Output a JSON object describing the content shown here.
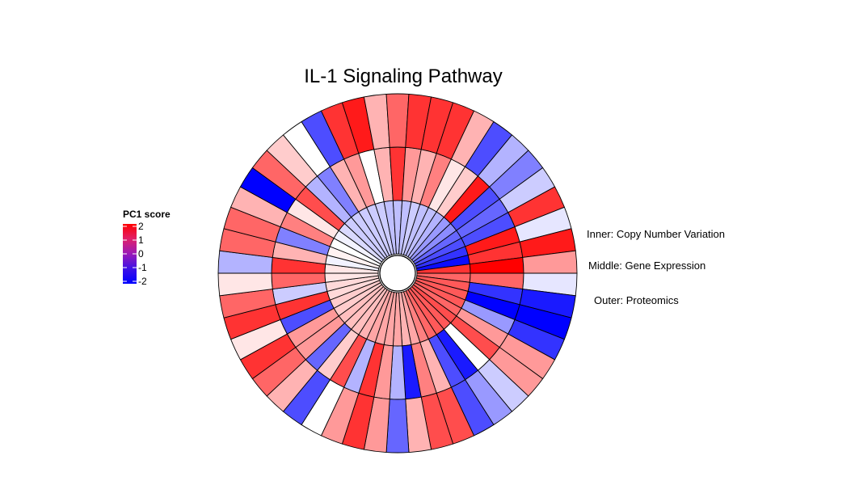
{
  "chart_data": {
    "type": "heatmap",
    "layout": "circular",
    "title": "IL-1 Signaling Pathway",
    "legend": {
      "title": "PC1 score",
      "ticks": [
        "2",
        "1",
        "0",
        "-1",
        "-2"
      ],
      "range": [
        -2,
        2
      ],
      "color_low": "#0000ff",
      "color_mid": "#ffffff",
      "color_high": "#ff0000",
      "placement": "left"
    },
    "ring_labels": {
      "inner": "Inner: Copy Number Variation",
      "middle": "Middle: Gene Expression",
      "outer": "Outer: Proteomics"
    },
    "genes_count": 50,
    "series": [
      {
        "name": "Inner: Copy Number Variation",
        "values": [
          1.2,
          1.3,
          1.3,
          1.3,
          1.2,
          1.4,
          1.3,
          1.3,
          1.2,
          1.0,
          0.7,
          0.6,
          0.7,
          0.7,
          0.7,
          0.7,
          0.6,
          0.5,
          0.5,
          0.5,
          0.4,
          0.4,
          0.3,
          0.3,
          0.2,
          0.2,
          -0.1,
          0.1,
          0.0,
          -0.1,
          -0.3,
          -0.4,
          -0.4,
          -0.4,
          -0.4,
          -0.4,
          -0.5,
          -0.5,
          -0.5,
          -0.4,
          -0.5,
          -0.5,
          -0.6,
          -0.8,
          -0.9,
          -1.2,
          -1.4,
          -1.6,
          -1.9,
          1.6
        ]
      },
      {
        "name": "Middle: Gene Expression",
        "values": [
          1.2,
          -1.6,
          -2.0,
          -0.8,
          0.8,
          1.4,
          0.0,
          -1.8,
          -1.4,
          0.6,
          1.0,
          -1.8,
          -0.6,
          0.8,
          1.6,
          -0.6,
          1.4,
          0.4,
          -1.2,
          0.8,
          0.8,
          -1.4,
          1.6,
          -0.4,
          1.2,
          1.6,
          0.6,
          -1.0,
          1.0,
          0.2,
          1.4,
          -0.6,
          -1.0,
          0.6,
          0.8,
          0.0,
          0.6,
          1.6,
          0.8,
          0.6,
          1.0,
          0.2,
          0.4,
          1.8,
          -1.4,
          -1.2,
          -1.4,
          1.8,
          1.6,
          2.0
        ]
      },
      {
        "name": "Outer: Proteomics",
        "values": [
          -0.2,
          -1.8,
          -2.0,
          -1.6,
          0.8,
          0.8,
          -0.4,
          -0.8,
          -1.4,
          1.4,
          1.4,
          0.6,
          -1.2,
          0.8,
          1.6,
          0.8,
          0.0,
          -1.4,
          0.6,
          1.2,
          1.6,
          0.2,
          1.6,
          1.2,
          0.2,
          -0.6,
          1.2,
          1.2,
          0.6,
          -2.0,
          1.2,
          0.4,
          0.0,
          -1.4,
          1.6,
          1.8,
          0.6,
          1.2,
          1.6,
          1.6,
          1.6,
          0.6,
          -1.4,
          -0.6,
          -1.0,
          -0.4,
          1.6,
          -0.2,
          1.8,
          0.8
        ]
      }
    ]
  }
}
